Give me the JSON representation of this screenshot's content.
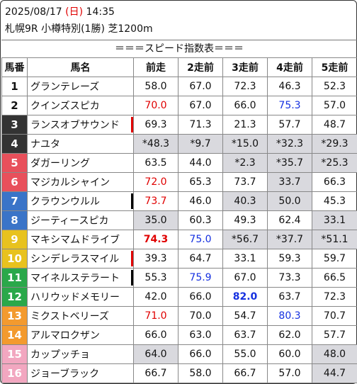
{
  "header": {
    "date": "2025/08/17",
    "weekday_open": "(",
    "weekday": "日",
    "weekday_close": ")",
    "time": "14:35",
    "race_line": "札幌9R 小樽特別(1勝) 芝1200m"
  },
  "title": "＝＝＝スピード指数表＝＝＝",
  "columns": [
    "馬番",
    "馬名",
    "前走",
    "2走前",
    "3走前",
    "4走前",
    "5走前"
  ],
  "colors": {
    "frame_1": "#ffffff",
    "frame_2": "#ffffff",
    "frame_3": "#333333",
    "frame_4": "#333333",
    "frame_5": "#e8505b",
    "frame_6": "#e8505b",
    "frame_7": "#3a74c8",
    "frame_8": "#3a74c8",
    "frame_9": "#e8c21e",
    "frame_10": "#e8c21e",
    "frame_11": "#2aa84a",
    "frame_12": "#2aa84a",
    "frame_13": "#f39a2e",
    "frame_14": "#f39a2e",
    "frame_15": "#f2a7c0",
    "frame_16": "#f2a7c0",
    "highlight_red": "#e00000",
    "highlight_blue": "#1530e0",
    "gray_cell": "#d9d9de"
  },
  "rows": [
    {
      "no": "1",
      "name": "グランテレーズ",
      "mark": "",
      "vals": [
        "58.0",
        "67.0",
        "72.3",
        "46.3",
        "52.3"
      ],
      "styles": [
        "",
        "",
        "",
        "",
        ""
      ],
      "gray": [
        0,
        0,
        0,
        0,
        0
      ]
    },
    {
      "no": "2",
      "name": "クインズスピカ",
      "mark": "",
      "vals": [
        "70.0",
        "67.0",
        "66.0",
        "75.3",
        "57.0"
      ],
      "styles": [
        "red",
        "",
        "",
        "blue",
        ""
      ],
      "gray": [
        0,
        0,
        0,
        0,
        0
      ]
    },
    {
      "no": "3",
      "name": "ランスオブサウンド",
      "mark": "red",
      "vals": [
        "69.3",
        "71.3",
        "21.3",
        "57.7",
        "48.7"
      ],
      "styles": [
        "",
        "",
        "",
        "",
        ""
      ],
      "gray": [
        0,
        0,
        0,
        0,
        0
      ]
    },
    {
      "no": "4",
      "name": "ナユタ",
      "mark": "",
      "vals": [
        "*48.3",
        "*9.7",
        "*15.0",
        "*32.3",
        "*29.3"
      ],
      "styles": [
        "",
        "",
        "",
        "",
        ""
      ],
      "gray": [
        1,
        1,
        1,
        1,
        1
      ]
    },
    {
      "no": "5",
      "name": "ダガーリング",
      "mark": "",
      "vals": [
        "63.5",
        "44.0",
        "*2.3",
        "*35.7",
        "*25.3"
      ],
      "styles": [
        "",
        "",
        "",
        "",
        ""
      ],
      "gray": [
        0,
        0,
        1,
        1,
        1
      ]
    },
    {
      "no": "6",
      "name": "マジカルシャイン",
      "mark": "",
      "vals": [
        "72.0",
        "65.3",
        "73.7",
        "33.7",
        "66.3"
      ],
      "styles": [
        "red",
        "",
        "",
        "",
        ""
      ],
      "gray": [
        0,
        0,
        0,
        1,
        0
      ]
    },
    {
      "no": "7",
      "name": "クラウンウルル",
      "mark": "black",
      "vals": [
        "73.7",
        "46.0",
        "40.3",
        "50.0",
        "45.3"
      ],
      "styles": [
        "red",
        "",
        "",
        "",
        ""
      ],
      "gray": [
        0,
        0,
        1,
        1,
        0
      ]
    },
    {
      "no": "8",
      "name": "ジーティースピカ",
      "mark": "",
      "vals": [
        "35.0",
        "60.3",
        "49.3",
        "62.4",
        "33.1"
      ],
      "styles": [
        "",
        "",
        "",
        "",
        ""
      ],
      "gray": [
        1,
        0,
        0,
        0,
        1
      ]
    },
    {
      "no": "9",
      "name": "マキシマムドライブ",
      "mark": "",
      "vals": [
        "74.3",
        "75.0",
        "*56.7",
        "*37.7",
        "*51.1"
      ],
      "styles": [
        "red bold",
        "blue",
        "",
        "",
        ""
      ],
      "gray": [
        0,
        0,
        1,
        1,
        1
      ]
    },
    {
      "no": "10",
      "name": "シンデレラスマイル",
      "mark": "red",
      "vals": [
        "39.3",
        "64.7",
        "33.1",
        "59.3",
        "59.7"
      ],
      "styles": [
        "",
        "",
        "",
        "",
        ""
      ],
      "gray": [
        0,
        0,
        0,
        0,
        0
      ]
    },
    {
      "no": "11",
      "name": "マイネルステラート",
      "mark": "black",
      "vals": [
        "55.3",
        "75.9",
        "67.0",
        "73.3",
        "66.5"
      ],
      "styles": [
        "",
        "blue",
        "",
        "",
        ""
      ],
      "gray": [
        0,
        0,
        0,
        0,
        0
      ]
    },
    {
      "no": "12",
      "name": "ハリウッドメモリー",
      "mark": "",
      "vals": [
        "42.0",
        "66.0",
        "82.0",
        "63.7",
        "72.3"
      ],
      "styles": [
        "",
        "",
        "blue bold",
        "",
        ""
      ],
      "gray": [
        0,
        0,
        0,
        0,
        0
      ]
    },
    {
      "no": "13",
      "name": "ミクストベリーズ",
      "mark": "",
      "vals": [
        "71.0",
        "70.0",
        "54.7",
        "80.3",
        "70.7"
      ],
      "styles": [
        "red",
        "",
        "",
        "blue",
        ""
      ],
      "gray": [
        0,
        0,
        0,
        0,
        0
      ]
    },
    {
      "no": "14",
      "name": "アルマロクザン",
      "mark": "",
      "vals": [
        "66.0",
        "63.0",
        "63.7",
        "62.0",
        "57.7"
      ],
      "styles": [
        "",
        "",
        "",
        "",
        ""
      ],
      "gray": [
        0,
        0,
        0,
        0,
        0
      ]
    },
    {
      "no": "15",
      "name": "カップッチョ",
      "mark": "",
      "vals": [
        "64.0",
        "66.0",
        "55.0",
        "60.0",
        "48.0"
      ],
      "styles": [
        "",
        "",
        "",
        "",
        ""
      ],
      "gray": [
        1,
        0,
        0,
        0,
        1
      ]
    },
    {
      "no": "16",
      "name": "ジョーブラック",
      "mark": "",
      "vals": [
        "66.7",
        "58.0",
        "66.7",
        "57.0",
        "44.7"
      ],
      "styles": [
        "",
        "",
        "",
        "",
        ""
      ],
      "gray": [
        0,
        0,
        0,
        0,
        1
      ]
    }
  ]
}
